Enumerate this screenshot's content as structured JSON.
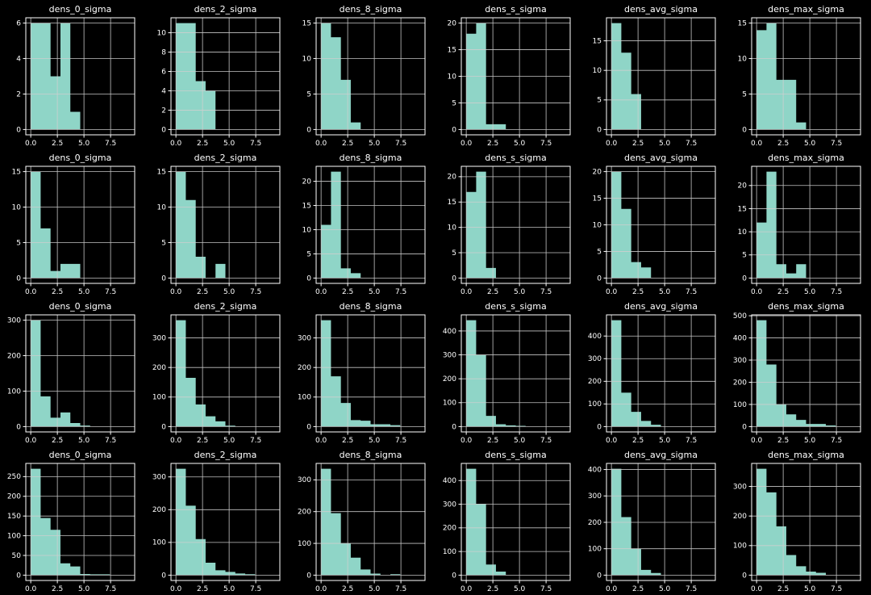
{
  "figure": {
    "background": "#000000",
    "bar_color": "#8fd5c7",
    "grid_color": "#cfcfcf",
    "axis_color": "#ffffff",
    "text_color": "#ffffff",
    "rows": 4,
    "cols": 6,
    "column_titles": [
      "dens_0_sigma",
      "dens_2_sigma",
      "dens_8_sigma",
      "dens_s_sigma",
      "dens_avg_sigma",
      "dens_max_sigma"
    ]
  },
  "chart_data": {
    "type": "histogram-grid",
    "grid": "on",
    "bin_start": 0,
    "bin_width": 0.93,
    "n_bins": 10,
    "xlim": [
      -0.465,
      9.765
    ],
    "xticks": [
      0,
      2.5,
      5,
      7.5
    ],
    "xtick_labels": [
      "0.0",
      "2.5",
      "5.0",
      "7.5"
    ],
    "subplots": [
      {
        "row": 1,
        "col": 1,
        "title": "dens_0_sigma",
        "counts": [
          6,
          6,
          3,
          6,
          1,
          0,
          0,
          0,
          0,
          0
        ],
        "yticks": [
          0,
          2,
          4,
          6
        ]
      },
      {
        "row": 1,
        "col": 2,
        "title": "dens_2_sigma",
        "counts": [
          11,
          11,
          5,
          4,
          0,
          0,
          0,
          0,
          0,
          0
        ],
        "yticks": [
          0,
          2,
          4,
          6,
          8,
          10
        ]
      },
      {
        "row": 1,
        "col": 3,
        "title": "dens_8_sigma",
        "counts": [
          15,
          13,
          7,
          1,
          0,
          0,
          0,
          0,
          0,
          0
        ],
        "yticks": [
          0,
          5,
          10,
          15
        ]
      },
      {
        "row": 1,
        "col": 4,
        "title": "dens_s_sigma",
        "counts": [
          18,
          20,
          1,
          1,
          0,
          0,
          0,
          0,
          0,
          0
        ],
        "yticks": [
          0,
          5,
          10,
          15,
          20
        ]
      },
      {
        "row": 1,
        "col": 5,
        "title": "dens_avg_sigma",
        "counts": [
          18,
          13,
          6,
          0,
          0,
          0,
          0,
          0,
          0,
          0
        ],
        "yticks": [
          0,
          5,
          10,
          15
        ]
      },
      {
        "row": 1,
        "col": 6,
        "title": "dens_max_sigma",
        "counts": [
          14,
          15,
          7,
          7,
          1,
          0,
          0,
          0,
          0,
          0
        ],
        "yticks": [
          0,
          5,
          10,
          15
        ]
      },
      {
        "row": 2,
        "col": 1,
        "title": "dens_0_sigma",
        "counts": [
          15,
          7,
          1,
          2,
          2,
          0,
          0,
          0,
          0,
          0
        ],
        "yticks": [
          0,
          5,
          10,
          15
        ]
      },
      {
        "row": 2,
        "col": 2,
        "title": "dens_2_sigma",
        "counts": [
          15,
          11,
          3,
          0,
          2,
          0,
          0,
          0,
          0,
          0
        ],
        "yticks": [
          0,
          5,
          10,
          15
        ]
      },
      {
        "row": 2,
        "col": 3,
        "title": "dens_8_sigma",
        "counts": [
          11,
          22,
          2,
          1,
          0,
          0,
          0,
          0,
          0,
          0
        ],
        "yticks": [
          0,
          5,
          10,
          15,
          20
        ]
      },
      {
        "row": 2,
        "col": 4,
        "title": "dens_s_sigma",
        "counts": [
          17,
          21,
          2,
          0,
          0,
          0,
          0,
          0,
          0,
          0
        ],
        "yticks": [
          0,
          5,
          10,
          15,
          20
        ]
      },
      {
        "row": 2,
        "col": 5,
        "title": "dens_avg_sigma",
        "counts": [
          20,
          13,
          3,
          2,
          0,
          0,
          0,
          0,
          0,
          0
        ],
        "yticks": [
          0,
          5,
          10,
          15,
          20
        ]
      },
      {
        "row": 2,
        "col": 6,
        "title": "dens_max_sigma",
        "counts": [
          12,
          23,
          3,
          1,
          3,
          0,
          0,
          0,
          0,
          0
        ],
        "yticks": [
          0,
          5,
          10,
          15,
          20
        ]
      },
      {
        "row": 3,
        "col": 1,
        "title": "dens_0_sigma",
        "counts": [
          300,
          85,
          25,
          40,
          10,
          3,
          0,
          0,
          0,
          0
        ],
        "yticks": [
          0,
          100,
          200,
          300
        ]
      },
      {
        "row": 3,
        "col": 2,
        "title": "dens_2_sigma",
        "counts": [
          360,
          165,
          75,
          35,
          18,
          3,
          0,
          0,
          0,
          0
        ],
        "yticks": [
          0,
          100,
          200,
          300
        ]
      },
      {
        "row": 3,
        "col": 3,
        "title": "dens_8_sigma",
        "counts": [
          360,
          170,
          80,
          22,
          20,
          8,
          8,
          5,
          0,
          0
        ],
        "yticks": [
          0,
          100,
          200,
          300
        ]
      },
      {
        "row": 3,
        "col": 4,
        "title": "dens_s_sigma",
        "counts": [
          445,
          300,
          45,
          10,
          5,
          3,
          0,
          0,
          0,
          0
        ],
        "yticks": [
          0,
          100,
          200,
          300,
          400
        ]
      },
      {
        "row": 3,
        "col": 5,
        "title": "dens_avg_sigma",
        "counts": [
          470,
          150,
          65,
          25,
          8,
          0,
          0,
          0,
          0,
          0
        ],
        "yticks": [
          0,
          100,
          200,
          300,
          400
        ]
      },
      {
        "row": 3,
        "col": 6,
        "title": "dens_max_sigma",
        "counts": [
          480,
          280,
          100,
          55,
          30,
          12,
          12,
          5,
          0,
          0
        ],
        "yticks": [
          0,
          100,
          200,
          300,
          400,
          500
        ]
      },
      {
        "row": 4,
        "col": 1,
        "title": "dens_0_sigma",
        "counts": [
          270,
          145,
          115,
          30,
          22,
          3,
          2,
          2,
          0,
          0
        ],
        "yticks": [
          0,
          50,
          100,
          150,
          200,
          250
        ]
      },
      {
        "row": 4,
        "col": 2,
        "title": "dens_2_sigma",
        "counts": [
          325,
          212,
          110,
          38,
          15,
          10,
          5,
          3,
          0,
          0
        ],
        "yticks": [
          0,
          100,
          200,
          300
        ]
      },
      {
        "row": 4,
        "col": 3,
        "title": "dens_8_sigma",
        "counts": [
          335,
          195,
          100,
          55,
          18,
          5,
          0,
          3,
          0,
          0
        ],
        "yticks": [
          0,
          100,
          200,
          300
        ]
      },
      {
        "row": 4,
        "col": 4,
        "title": "dens_s_sigma",
        "counts": [
          450,
          302,
          45,
          15,
          0,
          0,
          0,
          0,
          0,
          0
        ],
        "yticks": [
          0,
          100,
          200,
          300,
          400
        ]
      },
      {
        "row": 4,
        "col": 5,
        "title": "dens_avg_sigma",
        "counts": [
          403,
          220,
          100,
          20,
          8,
          0,
          0,
          0,
          0,
          0
        ],
        "yticks": [
          0,
          100,
          200,
          300,
          400
        ]
      },
      {
        "row": 4,
        "col": 6,
        "title": "dens_max_sigma",
        "counts": [
          360,
          280,
          165,
          68,
          30,
          12,
          8,
          0,
          0,
          0
        ],
        "yticks": [
          0,
          100,
          200,
          300
        ]
      }
    ]
  }
}
